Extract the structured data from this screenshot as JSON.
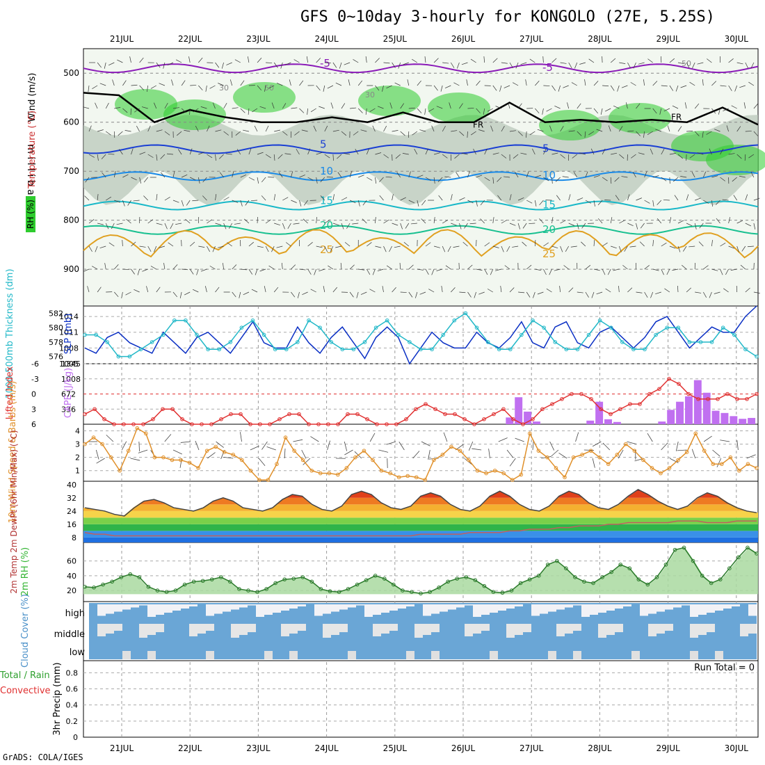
{
  "title": "GFS 0~10day 3-hourly for KONGOLO (27E, 5.25S)",
  "footer": "GrADS: COLA/IGES",
  "colors": {
    "rh_green": "#2ecc2e",
    "temp_line": "#0a2fc4",
    "thickness_line": "#22b8c8",
    "lifted_index": "#e03030",
    "cape_bar": "#c070f0",
    "wind_speed": "#e0902a",
    "rh2m": "#35b535",
    "cloud": "#6aa6d6",
    "freezing": "#000000"
  },
  "chart_data": [
    {
      "id": "upper",
      "type": "heatmap",
      "ylabel": "m i l l i b a r s",
      "side_labels": [
        "Wind (m/s)",
        "Temperature (°C)",
        "RH (%)"
      ],
      "x_days": [
        "21JUL",
        "22JUL",
        "23JUL",
        "24JUL",
        "25JUL",
        "26JUL",
        "27JUL",
        "28JUL",
        "29JUL",
        "30JUL"
      ],
      "y_ticks": [
        500,
        600,
        700,
        800,
        900
      ],
      "ylim": [
        450,
        975
      ],
      "isotherms": [
        {
          "label": "-5",
          "level": 490
        },
        {
          "label": "5",
          "level": 655
        },
        {
          "label": "10",
          "level": 710
        },
        {
          "label": "15",
          "level": 770
        },
        {
          "label": "20",
          "level": 820
        },
        {
          "label": "25",
          "level": 870
        }
      ],
      "rh_labels": [
        "30",
        "50"
      ],
      "freezing_label": "FR",
      "freezing_level_mb": [
        540,
        545,
        600,
        575,
        590,
        600,
        600,
        590,
        600,
        580,
        600,
        600,
        560,
        600,
        595,
        600,
        595,
        600,
        570,
        605
      ]
    },
    {
      "id": "slp_thickness",
      "type": "line",
      "ylabel_left": "1000-500mb Thickness (dm)",
      "ylabel_right": "SLP (mb)",
      "left_ticks": [
        576,
        578,
        580,
        582
      ],
      "right_ticks": [
        1005,
        1008,
        1011,
        1014
      ],
      "series": [
        {
          "name": "SLP (mb)",
          "values": [
            1008,
            1007,
            1010,
            1011,
            1009,
            1008,
            1007,
            1011,
            1009,
            1007,
            1010,
            1011,
            1009,
            1007,
            1010,
            1013,
            1009,
            1008,
            1008,
            1012,
            1009,
            1007,
            1010,
            1012,
            1009,
            1006,
            1010,
            1012,
            1010,
            1005,
            1008,
            1011,
            1009,
            1008,
            1008,
            1011,
            1009,
            1008,
            1010,
            1013,
            1009,
            1008,
            1012,
            1013,
            1009,
            1008,
            1011,
            1012,
            1010,
            1008,
            1010,
            1013,
            1014,
            1011,
            1008,
            1010,
            1012,
            1011,
            1011,
            1014,
            1016
          ]
        },
        {
          "name": "Thickness (dm)",
          "values": [
            579,
            579,
            578,
            576,
            576,
            577,
            578,
            579,
            581,
            581,
            579,
            577,
            577,
            578,
            580,
            581,
            579,
            577,
            577,
            578,
            581,
            580,
            578,
            577,
            577,
            578,
            580,
            581,
            579,
            578,
            577,
            577,
            579,
            581,
            582,
            580,
            578,
            577,
            577,
            579,
            581,
            580,
            578,
            577,
            577,
            579,
            581,
            580,
            578,
            577,
            577,
            579,
            580,
            580,
            578,
            578,
            578,
            580,
            579,
            577,
            576
          ]
        }
      ]
    },
    {
      "id": "li_cape",
      "type": "bar",
      "ylabel_left": "Lifted Index",
      "ylabel_right": "CAPE (J/kg)",
      "li_ticks": [
        -6,
        -3,
        0,
        3,
        6
      ],
      "cape_ticks": [
        1345,
        1008,
        672,
        336
      ],
      "lifted_index": [
        4,
        3,
        5,
        6,
        6,
        6,
        6,
        5,
        3,
        3,
        5,
        6,
        6,
        6,
        5,
        4,
        4,
        6,
        6,
        6,
        5,
        4,
        4,
        6,
        6,
        6,
        6,
        4,
        4,
        5,
        6,
        6,
        6,
        5,
        3,
        2,
        3,
        4,
        4,
        5,
        6,
        5,
        4,
        3,
        5,
        6,
        5,
        3,
        2,
        1,
        0,
        0,
        1,
        3,
        4,
        3,
        2,
        2,
        0,
        -1,
        -3,
        -2,
        0,
        1,
        1,
        1,
        0,
        1,
        1,
        0
      ],
      "cape": [
        0,
        0,
        0,
        0,
        0,
        0,
        0,
        0,
        0,
        0,
        0,
        0,
        0,
        0,
        0,
        0,
        0,
        0,
        0,
        0,
        0,
        0,
        0,
        0,
        0,
        0,
        0,
        0,
        0,
        0,
        0,
        0,
        0,
        0,
        0,
        0,
        0,
        0,
        0,
        0,
        0,
        0,
        0,
        0,
        0,
        0,
        0,
        150,
        600,
        280,
        60,
        0,
        0,
        0,
        0,
        0,
        80,
        500,
        110,
        50,
        0,
        0,
        0,
        0,
        60,
        320,
        500,
        620,
        980,
        700,
        300,
        250,
        180,
        120,
        140
      ]
    },
    {
      "id": "wind10m",
      "type": "line",
      "ylabel": "10m Wind Speed & Barbs (m/s)",
      "y_ticks": [
        1,
        2,
        3,
        4
      ],
      "values": [
        3.0,
        3.5,
        3.0,
        2.0,
        1.0,
        2.5,
        4.2,
        3.8,
        2.0,
        2.0,
        1.8,
        1.8,
        1.6,
        1.2,
        2.5,
        2.8,
        2.4,
        2.2,
        1.8,
        1.0,
        0.3,
        0.3,
        1.5,
        3.5,
        2.5,
        1.8,
        1.0,
        0.8,
        0.8,
        0.7,
        1.2,
        2.0,
        2.5,
        1.8,
        1.0,
        0.8,
        0.5,
        0.6,
        0.5,
        0.3,
        1.8,
        2.2,
        2.8,
        2.5,
        1.8,
        1.0,
        0.8,
        1.0,
        0.8,
        0.3,
        0.7,
        3.8,
        2.5,
        2.0,
        1.2,
        0.5,
        2.0,
        2.2,
        2.5,
        2.0,
        1.5,
        2.2,
        3.0,
        2.5,
        1.8,
        1.2,
        0.8,
        1.2,
        1.8,
        2.4,
        3.8,
        2.5,
        1.5,
        1.5,
        2.0,
        1.0,
        1.5,
        1.2
      ]
    },
    {
      "id": "temp2m",
      "type": "area",
      "ylabel": "2m Temp 2m DewPt (6hr Min/Max) (°C)",
      "y_ticks": [
        8,
        16,
        24,
        32,
        40
      ],
      "temp": [
        26,
        25,
        24,
        22,
        21,
        26,
        30,
        31,
        29,
        26,
        25,
        24,
        26,
        30,
        32,
        30,
        26,
        25,
        24,
        26,
        31,
        34,
        33,
        28,
        25,
        24,
        27,
        34,
        36,
        34,
        29,
        26,
        25,
        27,
        33,
        35,
        33,
        28,
        25,
        24,
        27,
        33,
        36,
        33,
        28,
        25,
        24,
        27,
        33,
        36,
        34,
        29,
        26,
        25,
        28,
        33,
        37,
        34,
        30,
        27,
        25,
        27,
        32,
        35,
        33,
        29,
        26,
        24,
        23
      ],
      "dewpoint": [
        11,
        10,
        10,
        9,
        9,
        9,
        9,
        9,
        9,
        9,
        9,
        9,
        9,
        9,
        9,
        9,
        9,
        9,
        9,
        9,
        9,
        9,
        9,
        9,
        9,
        9,
        9,
        9,
        9,
        9,
        9,
        9,
        9,
        9,
        10,
        10,
        10,
        10,
        10,
        11,
        11,
        11,
        11,
        12,
        12,
        13,
        13,
        13,
        14,
        14,
        15,
        15,
        15,
        16,
        16,
        17,
        17,
        17,
        17,
        17,
        18,
        18,
        18,
        17,
        17,
        17,
        18,
        18,
        18
      ]
    },
    {
      "id": "rh2m",
      "type": "area",
      "ylabel": "2m RH (%)",
      "y_ticks": [
        20,
        40,
        60
      ],
      "values": [
        25,
        24,
        28,
        32,
        38,
        42,
        38,
        25,
        20,
        18,
        20,
        28,
        32,
        33,
        35,
        38,
        32,
        22,
        20,
        18,
        22,
        30,
        35,
        36,
        38,
        32,
        22,
        19,
        18,
        22,
        28,
        34,
        40,
        36,
        28,
        20,
        18,
        16,
        18,
        24,
        32,
        36,
        38,
        34,
        26,
        18,
        17,
        20,
        30,
        35,
        40,
        55,
        60,
        50,
        38,
        32,
        30,
        38,
        45,
        55,
        50,
        35,
        28,
        38,
        55,
        75,
        78,
        60,
        40,
        30,
        35,
        50,
        65,
        78,
        70
      ]
    },
    {
      "id": "cloud",
      "type": "heatmap",
      "ylabel": "Cloud Cover (%)",
      "rows": [
        "high",
        "middle",
        "low"
      ]
    },
    {
      "id": "precip",
      "type": "bar",
      "ylabel": "3hr Precip (mm)",
      "side_labels": [
        "Total / Rain",
        "Convective"
      ],
      "y_ticks": [
        "0",
        "0.2",
        "0.4",
        "0.6",
        "0.8"
      ],
      "run_total": "Run Total = 0",
      "values": []
    }
  ]
}
